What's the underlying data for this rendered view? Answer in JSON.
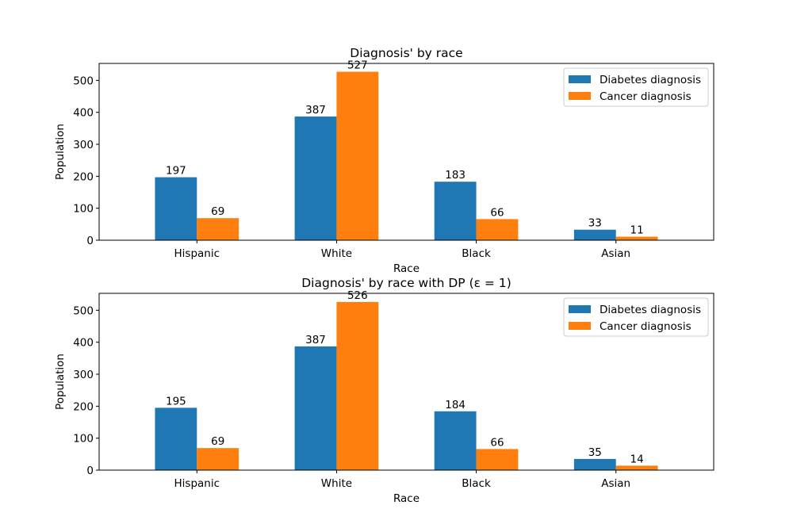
{
  "colors": {
    "diabetes": "#1f77b4",
    "cancer": "#ff7f0e"
  },
  "chart_data": [
    {
      "type": "bar",
      "title": "Diagnosis' by race",
      "xlabel": "Race",
      "ylabel": "Population",
      "categories": [
        "Hispanic",
        "White",
        "Black",
        "Asian"
      ],
      "ylim": [
        0,
        553
      ],
      "yticks": [
        0,
        100,
        200,
        300,
        400,
        500
      ],
      "legend_position": "top-right",
      "series": [
        {
          "name": "Diabetes diagnosis",
          "values": [
            197,
            387,
            183,
            33
          ],
          "labels": [
            "197",
            "387",
            "183",
            "33"
          ]
        },
        {
          "name": "Cancer diagnosis",
          "values": [
            69,
            527,
            66,
            11
          ],
          "labels": [
            "69",
            "527",
            "66",
            "11"
          ]
        }
      ]
    },
    {
      "type": "bar",
      "title": "Diagnosis' by race with DP (ε = 1)",
      "xlabel": "Race",
      "ylabel": "Population",
      "categories": [
        "Hispanic",
        "White",
        "Black",
        "Asian"
      ],
      "ylim": [
        0,
        553
      ],
      "yticks": [
        0,
        100,
        200,
        300,
        400,
        500
      ],
      "legend_position": "top-right",
      "series": [
        {
          "name": "Diabetes diagnosis",
          "values": [
            195,
            387,
            184,
            35
          ],
          "labels": [
            "195",
            "387",
            "184",
            "35"
          ]
        },
        {
          "name": "Cancer diagnosis",
          "values": [
            69,
            526,
            66,
            14
          ],
          "labels": [
            "69",
            "526",
            "66",
            "14"
          ]
        }
      ]
    }
  ]
}
